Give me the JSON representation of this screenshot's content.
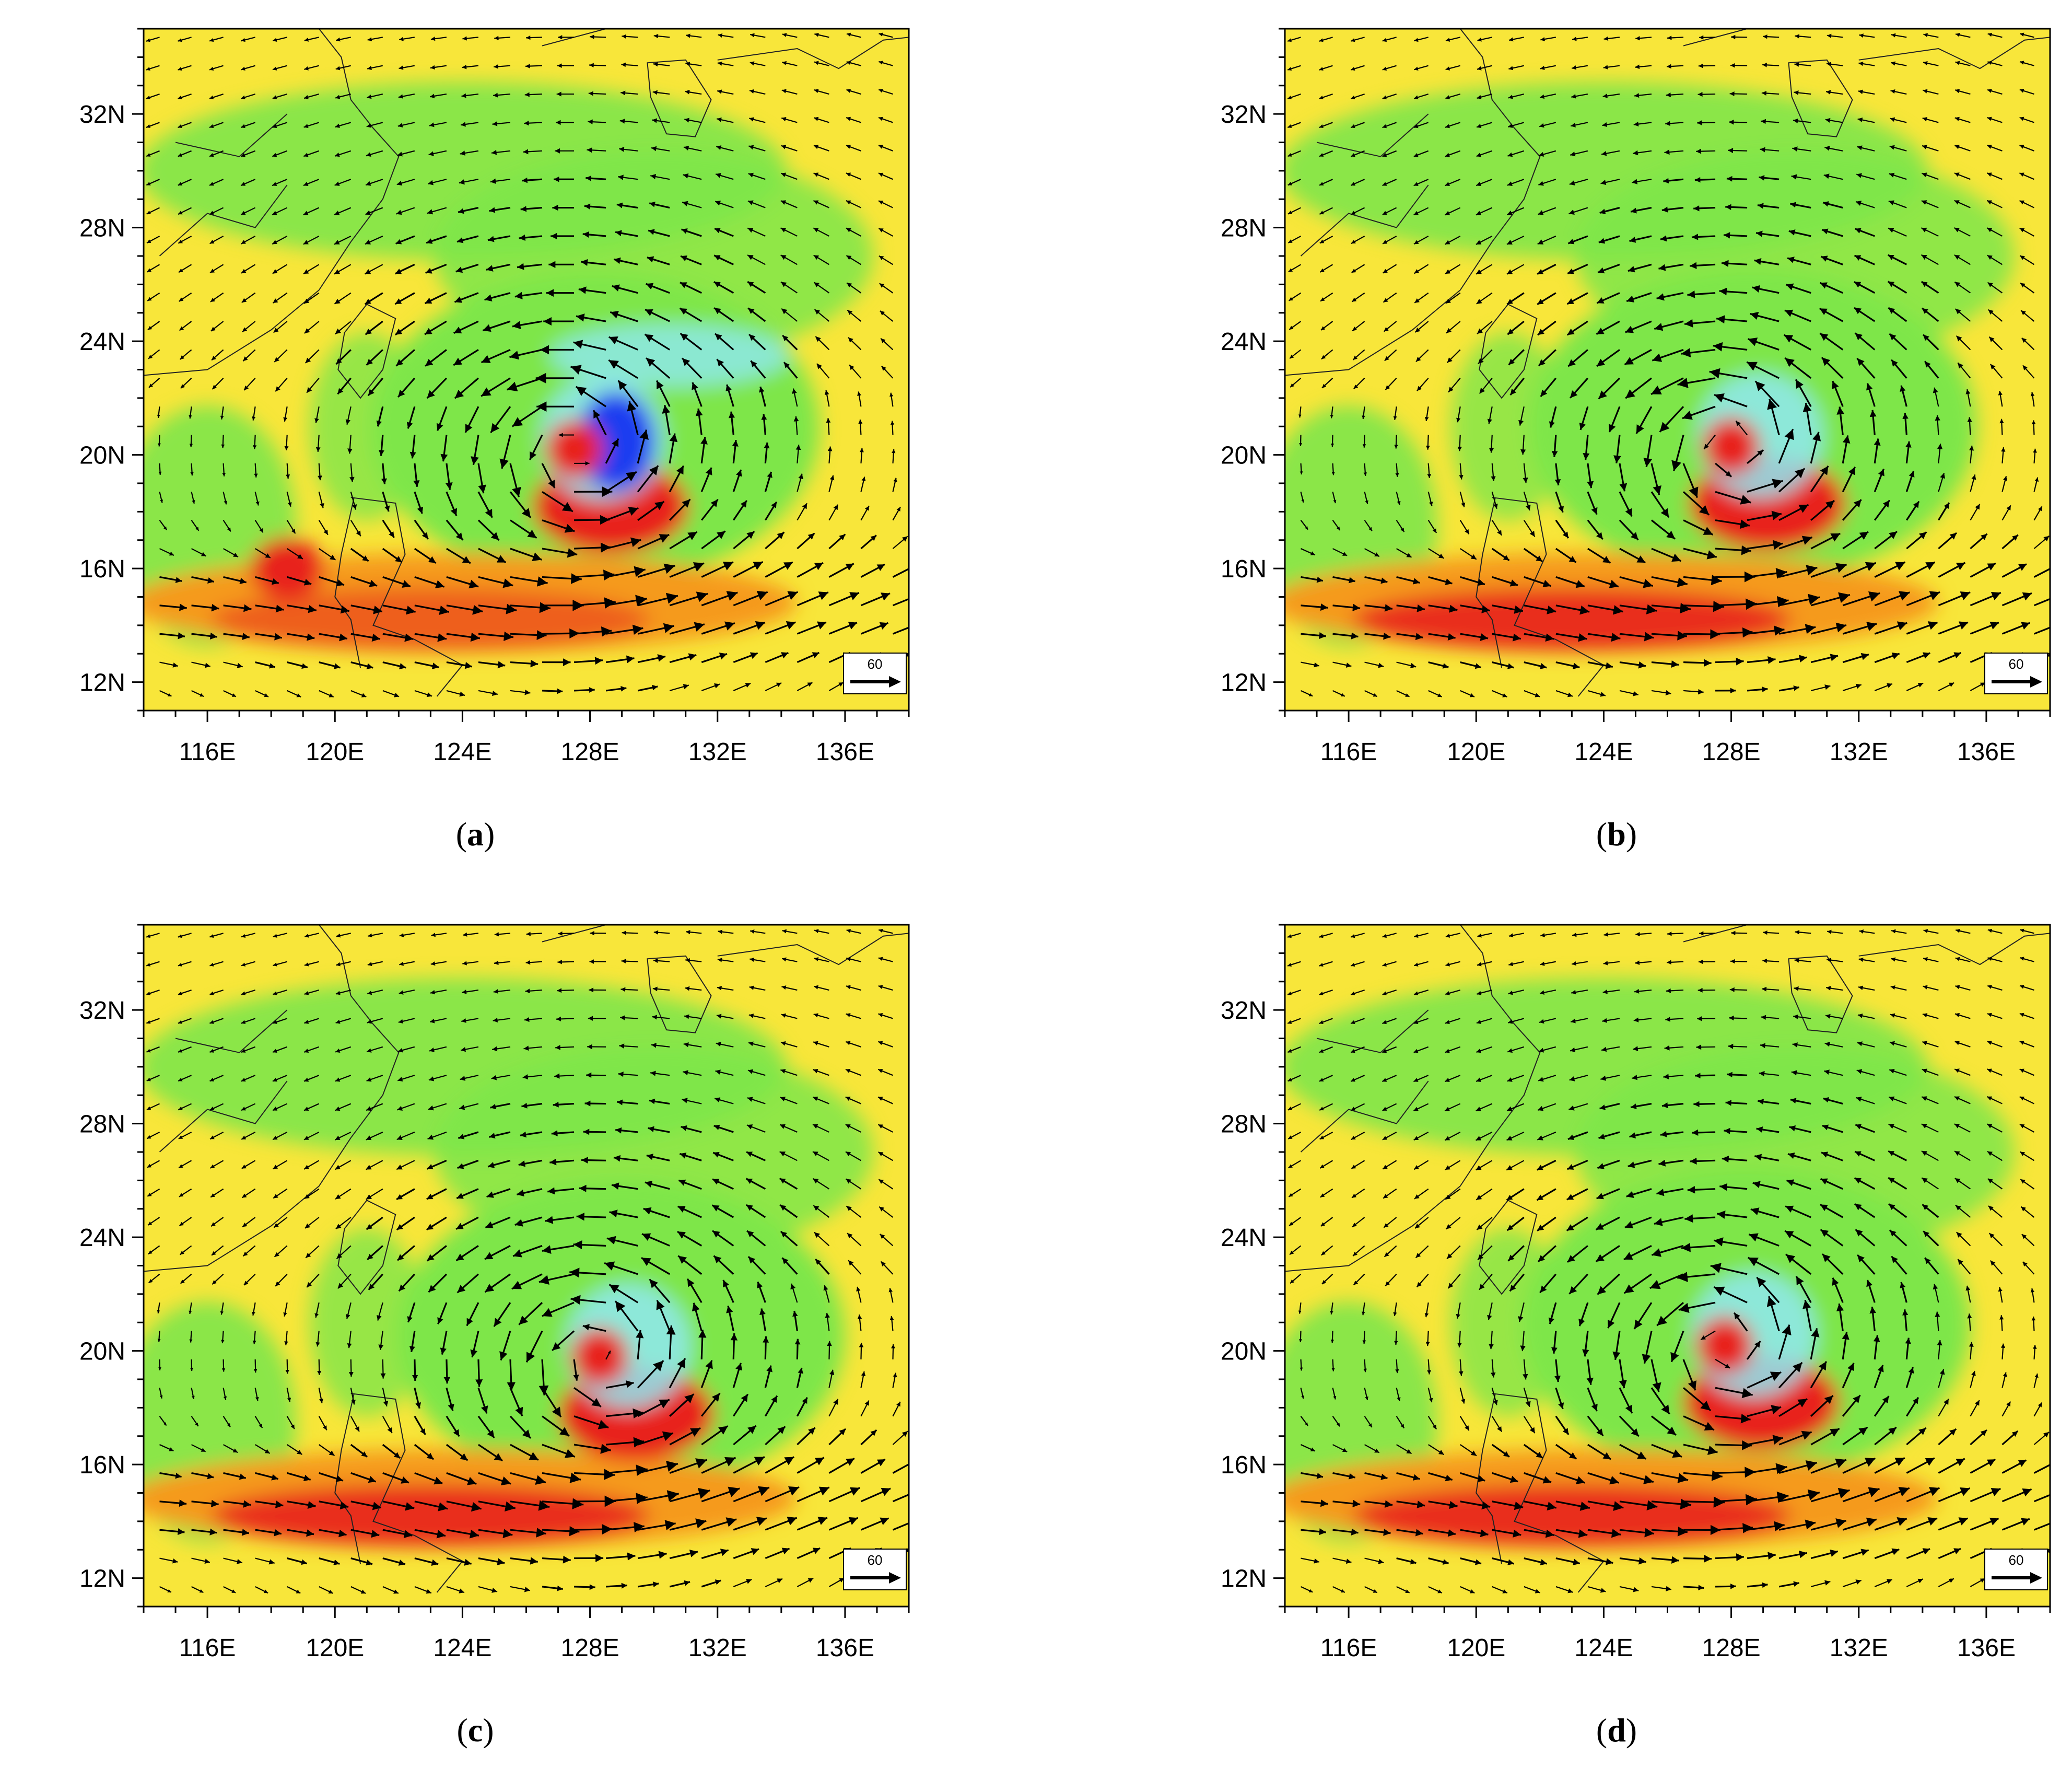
{
  "figure": {
    "lon_ticks": [
      "116E",
      "120E",
      "124E",
      "128E",
      "132E",
      "136E"
    ],
    "lat_ticks": [
      "32N",
      "28N",
      "24N",
      "20N",
      "16N",
      "12N"
    ],
    "lon_range": [
      114,
      138
    ],
    "lat_range": [
      11,
      35
    ],
    "reference_vector": "60",
    "colors": {
      "red": "#e8241c",
      "orange": "#f59a1e",
      "yellow": "#f8e63a",
      "green": "#7ee64a",
      "cyan": "#8fe8f2",
      "blue": "#1a3cf0"
    }
  },
  "panels": [
    {
      "id": "a",
      "label_open": "(",
      "label_letter": "a",
      "label_close": ")",
      "center": [
        127.5,
        20.2
      ]
    },
    {
      "id": "b",
      "label_open": "(",
      "label_letter": "b",
      "label_close": ")",
      "center": [
        128.0,
        20.3
      ]
    },
    {
      "id": "c",
      "label_open": "(",
      "label_letter": "c",
      "label_close": ")",
      "center": [
        128.3,
        19.8
      ]
    },
    {
      "id": "d",
      "label_open": "(",
      "label_letter": "d",
      "label_close": ")",
      "center": [
        127.8,
        20.2
      ]
    }
  ]
}
